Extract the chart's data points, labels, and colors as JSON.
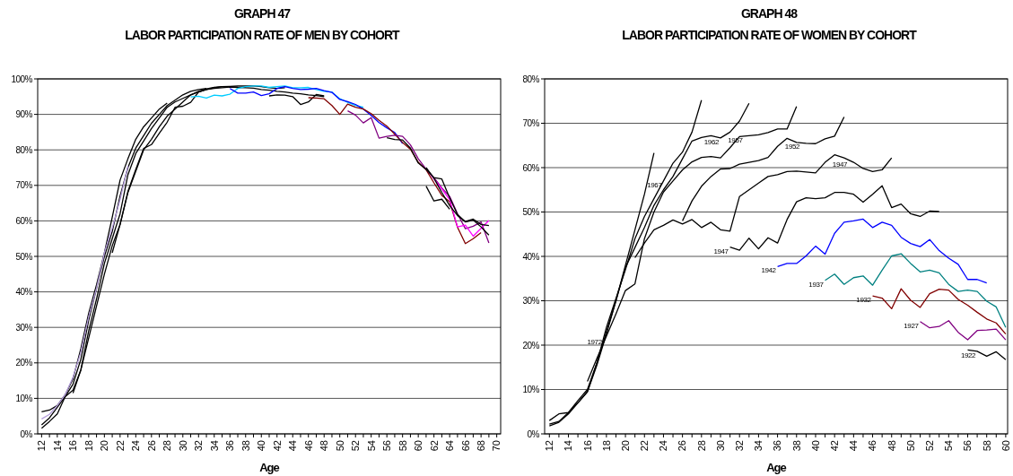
{
  "chart_data": [
    {
      "type": "line",
      "title": "GRAPH 47",
      "subtitle": "LABOR PARTICIPATION RATE OF MEN BY COHORT",
      "xlabel": "Age",
      "xlim": [
        11.5,
        70.5
      ],
      "ylim": [
        0,
        100
      ],
      "grid": "y",
      "xticks": [
        12,
        {
          "value": 13,
          "label": null
        },
        14,
        {
          "value": 15,
          "label": null
        },
        16,
        {
          "value": 17,
          "label": null
        },
        18,
        {
          "value": 19,
          "label": null
        },
        20,
        {
          "value": 21,
          "label": null
        },
        22,
        {
          "value": 23,
          "label": null
        },
        24,
        {
          "value": 25,
          "label": null
        },
        26,
        {
          "value": 27,
          "label": null
        },
        28,
        {
          "value": 29,
          "label": null
        },
        30,
        {
          "value": 31,
          "label": null
        },
        32,
        {
          "value": 33,
          "label": null
        },
        34,
        {
          "value": 35,
          "label": null
        },
        36,
        {
          "value": 37,
          "label": null
        },
        38,
        {
          "value": 39,
          "label": null
        },
        40,
        {
          "value": 41,
          "label": null
        },
        42,
        {
          "value": 43,
          "label": null
        },
        44,
        {
          "value": 45,
          "label": null
        },
        46,
        {
          "value": 47,
          "label": null
        },
        48,
        {
          "value": 49,
          "label": null
        },
        50,
        {
          "value": 51,
          "label": null
        },
        52,
        {
          "value": 53,
          "label": null
        },
        54,
        {
          "value": 55,
          "label": null
        },
        56,
        {
          "value": 57,
          "label": null
        },
        58,
        {
          "value": 59,
          "label": null
        },
        60,
        {
          "value": 61,
          "label": null
        },
        62,
        {
          "value": 63,
          "label": null
        },
        64,
        {
          "value": 65,
          "label": null
        },
        66,
        {
          "value": 67,
          "label": null
        },
        68,
        {
          "value": 69,
          "label": null
        },
        70
      ],
      "yticks": [
        {
          "value": 0,
          "label": "0%"
        },
        {
          "value": 10,
          "label": "10%"
        },
        {
          "value": 20,
          "label": "20%"
        },
        {
          "value": 30,
          "label": "30%"
        },
        {
          "value": 40,
          "label": "40%"
        },
        {
          "value": 50,
          "label": "50%"
        },
        {
          "value": 60,
          "label": "60%"
        },
        {
          "value": 70,
          "label": "70%"
        },
        {
          "value": 80,
          "label": "80%"
        },
        {
          "value": 90,
          "label": "90%"
        },
        {
          "value": 100,
          "label": "100%"
        }
      ],
      "series": [
        {
          "color": "#000000",
          "x": [
            12,
            13,
            14,
            15,
            16,
            17,
            18,
            19,
            20,
            21,
            22,
            23,
            24,
            25,
            26,
            27,
            28
          ],
          "values": [
            6.2,
            6.7,
            8,
            11,
            15.5,
            24,
            34,
            42,
            51,
            61,
            71.5,
            77.5,
            83,
            86.5,
            89,
            91.5,
            93.2
          ]
        },
        {
          "color": "#000000",
          "x": [
            12,
            13,
            14,
            15,
            16,
            17,
            18,
            19,
            20,
            21,
            22,
            23,
            24,
            25,
            26,
            27,
            28,
            29,
            30,
            31,
            32,
            33
          ],
          "values": [
            2.5,
            4.5,
            7.5,
            10.5,
            14,
            21,
            32,
            41,
            50,
            57,
            67,
            75,
            80.5,
            84,
            87.5,
            90,
            92.5,
            94,
            95.5,
            96.5,
            97,
            97.3
          ]
        },
        {
          "color": "#000000",
          "x": [
            12,
            13,
            14,
            15,
            16,
            17,
            18,
            19,
            20,
            21,
            22,
            23,
            24,
            25,
            26,
            27,
            28,
            29,
            30,
            31,
            32,
            33,
            34,
            35,
            36,
            37,
            38
          ],
          "values": [
            1.6,
            3.5,
            5.6,
            10.5,
            12.3,
            18,
            29,
            38,
            48,
            55,
            62,
            73,
            79,
            82.5,
            86,
            89,
            92,
            93.5,
            94.5,
            95.5,
            96.3,
            97,
            97.3,
            97.5,
            97.7,
            97.6,
            97.7
          ]
        },
        {
          "color": "#b39ddb",
          "x": [
            12,
            13,
            14,
            15,
            16,
            17,
            18,
            19,
            20,
            21,
            22,
            23
          ],
          "values": [
            4.2,
            5.5,
            8,
            11,
            16,
            23,
            33,
            41,
            51,
            58,
            66,
            75.5
          ]
        },
        {
          "color": "#000000",
          "x": [
            16,
            17,
            18,
            19,
            20,
            21,
            22,
            23,
            24,
            25,
            26,
            27,
            28,
            29,
            30,
            31,
            32,
            33,
            34,
            35,
            36,
            37,
            38,
            39,
            40,
            41,
            42,
            43
          ],
          "values": [
            11.5,
            18,
            27,
            36,
            45,
            53,
            59,
            68,
            74,
            80,
            83,
            86.5,
            89.5,
            91.5,
            93.5,
            95.5,
            96.5,
            97.2,
            97.6,
            97.8,
            97.9,
            98,
            98,
            98,
            97.8,
            97.5,
            97.3,
            97.5
          ]
        },
        {
          "color": "#000000",
          "x": [
            21,
            22,
            23,
            24,
            25,
            26,
            27,
            28,
            29,
            30,
            31,
            32,
            33,
            34,
            35,
            36,
            37,
            38,
            39,
            40,
            41,
            42,
            43,
            44,
            45,
            46,
            47,
            48
          ],
          "values": [
            51,
            59,
            68.3,
            74.5,
            80.4,
            81.5,
            84.7,
            87.8,
            92,
            92.3,
            93.4,
            96.3,
            97,
            97.5,
            97.8,
            97.8,
            97.6,
            97.5,
            97.4,
            97,
            96.8,
            96.5,
            96.3,
            96,
            95.8,
            95.5,
            95.3,
            95
          ]
        },
        {
          "color": "#00ccff",
          "x": [
            31,
            32,
            33,
            34,
            35,
            36,
            37,
            38,
            39,
            40,
            41,
            42,
            43,
            44,
            45,
            46,
            47,
            48,
            49,
            50,
            51,
            52,
            53
          ],
          "values": [
            94.9,
            95.1,
            94.6,
            95.4,
            95.2,
            95.7,
            97.3,
            97.8,
            98,
            98,
            97.6,
            97.8,
            98,
            97.5,
            97.5,
            97.6,
            97,
            96.5,
            96.3,
            94.4,
            93.4,
            92.5,
            92
          ]
        },
        {
          "color": "#0000ff",
          "x": [
            36,
            37,
            38,
            39,
            40,
            41,
            42,
            43,
            44,
            45,
            46,
            47,
            48,
            49,
            50,
            51,
            52,
            53,
            54,
            55,
            56,
            57,
            58
          ],
          "values": [
            97.3,
            96,
            96,
            96.3,
            95.3,
            95.8,
            97.3,
            97.8,
            97.3,
            97,
            97.1,
            97.3,
            96.7,
            96.2,
            94.2,
            93.6,
            92.8,
            91.5,
            89.7,
            87.7,
            86.2,
            84.9,
            81.8
          ]
        },
        {
          "color": "#000000",
          "x": [
            41,
            42,
            43,
            44,
            45,
            46,
            47,
            48
          ],
          "values": [
            95.2,
            95.5,
            95.4,
            95,
            92.8,
            93.5,
            95.6,
            95.2
          ]
        },
        {
          "color": "#800000",
          "x": [
            46,
            47,
            48,
            49,
            50,
            51,
            52,
            53,
            54,
            55,
            56,
            57,
            58,
            59,
            60,
            61,
            62,
            63,
            64,
            65,
            66,
            67,
            68
          ],
          "values": [
            94.7,
            94.6,
            94.4,
            92.5,
            90,
            92.9,
            92,
            91.5,
            90.2,
            88.3,
            86.7,
            84.4,
            82.1,
            80.2,
            76.5,
            74.4,
            70.7,
            67.2,
            65.4,
            58.2,
            53.6,
            55,
            56.7
          ]
        },
        {
          "color": "#800080",
          "x": [
            51,
            52,
            53,
            54,
            55,
            56,
            57,
            58,
            59,
            60,
            61,
            62,
            63,
            64,
            65,
            66,
            67,
            68,
            69
          ],
          "values": [
            91,
            89.8,
            87.6,
            89.1,
            83.3,
            83.8,
            84.1,
            83.8,
            81.4,
            77.5,
            74.6,
            72.2,
            69.3,
            66.9,
            62,
            57.8,
            58.5,
            59.7,
            53.8
          ]
        },
        {
          "color": "#ff00ff",
          "x": [
            61,
            62,
            63,
            64,
            65,
            66,
            67,
            68,
            69
          ],
          "values": [
            74.8,
            71.8,
            69,
            66,
            58.3,
            58.8,
            55.7,
            57.9,
            60.1
          ]
        },
        {
          "color": "#000000",
          "x": [
            61,
            62,
            63,
            64
          ],
          "values": [
            69.8,
            65.6,
            66.1,
            63.3
          ]
        },
        {
          "color": "#000000",
          "x": [
            56,
            57,
            58,
            59,
            60,
            61,
            62,
            63,
            64,
            65,
            66,
            67,
            68,
            69
          ],
          "values": [
            83.4,
            82.9,
            82.8,
            80.5,
            76.3,
            74.5,
            72.2,
            71.8,
            66.5,
            61.8,
            59.7,
            60.2,
            58.3,
            56
          ]
        },
        {
          "color": "#000000",
          "x": [
            61,
            62,
            63,
            64,
            65,
            66,
            67,
            68,
            69
          ],
          "values": [
            75,
            72,
            68,
            64.3,
            61.5,
            59.8,
            60.5,
            59,
            58.7
          ]
        }
      ]
    },
    {
      "type": "line",
      "title": "GRAPH 48",
      "subtitle": "LABOR PARTICIPATION RATE OF WOMEN BY COHORT",
      "xlabel": "Age",
      "xlim": [
        11.5,
        60.2
      ],
      "ylim": [
        0,
        80
      ],
      "grid": "y",
      "xticks": [
        12,
        {
          "value": 13,
          "label": null
        },
        14,
        {
          "value": 15,
          "label": null
        },
        16,
        {
          "value": 17,
          "label": null
        },
        18,
        {
          "value": 19,
          "label": null
        },
        20,
        {
          "value": 21,
          "label": null
        },
        22,
        {
          "value": 23,
          "label": null
        },
        24,
        {
          "value": 25,
          "label": null
        },
        26,
        {
          "value": 27,
          "label": null
        },
        28,
        {
          "value": 29,
          "label": null
        },
        30,
        {
          "value": 31,
          "label": null
        },
        32,
        {
          "value": 33,
          "label": null
        },
        34,
        {
          "value": 35,
          "label": null
        },
        36,
        {
          "value": 37,
          "label": null
        },
        38,
        {
          "value": 39,
          "label": null
        },
        40,
        {
          "value": 41,
          "label": null
        },
        42,
        {
          "value": 43,
          "label": null
        },
        44,
        {
          "value": 45,
          "label": null
        },
        46,
        {
          "value": 47,
          "label": null
        },
        48,
        {
          "value": 49,
          "label": null
        },
        50,
        {
          "value": 51,
          "label": null
        },
        52,
        {
          "value": 53,
          "label": null
        },
        54,
        {
          "value": 55,
          "label": null
        },
        56,
        {
          "value": 57,
          "label": null
        },
        58,
        {
          "value": 59,
          "label": null
        },
        60
      ],
      "yticks": [
        {
          "value": 0,
          "label": "0%"
        },
        {
          "value": 10,
          "label": "10%"
        },
        {
          "value": 20,
          "label": "20%"
        },
        {
          "value": 30,
          "label": "30%"
        },
        {
          "value": 40,
          "label": "40%"
        },
        {
          "value": 50,
          "label": "50%"
        },
        {
          "value": 60,
          "label": "60%"
        },
        {
          "value": 70,
          "label": "70%"
        },
        {
          "value": 80,
          "label": "80%"
        }
      ],
      "series": [
        {
          "color": "#000000",
          "x": [
            12,
            13,
            14,
            15,
            16,
            17,
            18,
            19,
            20,
            21,
            22,
            23
          ],
          "values": [
            3,
            4.5,
            4.8,
            7.5,
            10,
            16,
            23,
            30,
            38,
            46,
            54,
            63.3
          ]
        },
        {
          "color": "#000000",
          "x": [
            12,
            13,
            14,
            15,
            16,
            17,
            18,
            19,
            20,
            21,
            22,
            23,
            24,
            25,
            26,
            27,
            28
          ],
          "values": [
            2.2,
            2.8,
            4.8,
            7,
            9.5,
            16,
            24,
            30.5,
            37,
            44,
            49,
            53,
            57,
            61,
            63.5,
            68,
            75.2
          ]
        },
        {
          "color": "#000000",
          "x": [
            12,
            13,
            14,
            15,
            16,
            17,
            18,
            19,
            20,
            21,
            22,
            23,
            24,
            25,
            26,
            27,
            28,
            29,
            30,
            31,
            32,
            33
          ],
          "values": [
            1.8,
            2.6,
            4.5,
            7,
            9.5,
            15.5,
            22.5,
            30,
            37.5,
            42,
            46.5,
            51.5,
            55,
            58,
            62,
            66,
            66.8,
            67.2,
            66.7,
            68,
            70.5,
            74.5
          ]
        },
        {
          "color": "#000000",
          "x": [
            16,
            17,
            18,
            19,
            20,
            21,
            22,
            23,
            24,
            25,
            26,
            27,
            28,
            29,
            30,
            31,
            32,
            33,
            34,
            35,
            36,
            37,
            38
          ],
          "values": [
            11.8,
            17,
            22,
            27,
            32.3,
            33.8,
            44,
            50,
            54.5,
            57,
            59.5,
            61.3,
            62.3,
            62.5,
            62.2,
            64.5,
            67,
            67.2,
            67.4,
            67.9,
            68.7,
            68.7,
            73.8
          ]
        },
        {
          "color": "#000000",
          "x": [
            21,
            22,
            23,
            24,
            25,
            26,
            27,
            28,
            29,
            30,
            31,
            32,
            33,
            34,
            35,
            36,
            37,
            38,
            39,
            40,
            41,
            42,
            43,
            44,
            45,
            46,
            47,
            48
          ],
          "values": [
            39.7,
            43,
            46,
            47,
            48.2,
            47.3,
            48.3,
            46.5,
            47.7,
            46,
            45.7,
            53.5,
            55,
            56.5,
            58,
            58.4,
            59.1,
            59.2,
            59,
            58.8,
            61.2,
            62.9,
            62.2,
            61.2,
            59.8,
            59.1,
            59.5,
            62.2
          ]
        },
        {
          "color": "#000000",
          "x": [
            26,
            27,
            28,
            29,
            30,
            31,
            32,
            33,
            34,
            35,
            36,
            37,
            38,
            39,
            40,
            41,
            42,
            43
          ],
          "values": [
            48,
            52.5,
            55.8,
            58,
            59.7,
            59.8,
            60.8,
            61.2,
            61.6,
            62.3,
            64.8,
            66.6,
            65.7,
            65.5,
            65.4,
            66.5,
            67.1,
            71.4
          ]
        },
        {
          "color": "#000000",
          "x": [
            31,
            32,
            33,
            34,
            35,
            36,
            37,
            38,
            39,
            40,
            41,
            42,
            43,
            44,
            45,
            46,
            47,
            48,
            49,
            50,
            51,
            52,
            53
          ],
          "values": [
            42.1,
            41.4,
            44.1,
            41.7,
            44.2,
            43,
            48.3,
            52.3,
            53.2,
            53,
            53.2,
            54.4,
            54.4,
            54,
            52.2,
            54,
            55.9,
            51,
            51.8,
            49.6,
            49,
            50.2,
            50.1
          ]
        },
        {
          "color": "#0000ff",
          "x": [
            36,
            37,
            38,
            39,
            40,
            41,
            42,
            43,
            44,
            45,
            46,
            47,
            48,
            49,
            50,
            51,
            52,
            53,
            54,
            55,
            56,
            57,
            58
          ],
          "values": [
            37.7,
            38.4,
            38.4,
            40.1,
            42.3,
            40.5,
            45.2,
            47.7,
            48,
            48.4,
            46.5,
            47.7,
            47,
            44.3,
            42.9,
            42.2,
            43.8,
            41.3,
            39.6,
            38.2,
            34.8,
            34.8,
            34
          ]
        },
        {
          "color": "#008080",
          "x": [
            41,
            42,
            43,
            44,
            45,
            46,
            47,
            48,
            49,
            50,
            51,
            52,
            53,
            54,
            55,
            56,
            57,
            58,
            59,
            60
          ],
          "values": [
            34.6,
            36,
            33.7,
            35.2,
            35.6,
            33.5,
            36.9,
            40.1,
            40.6,
            38.4,
            36.5,
            36.9,
            36.3,
            33.7,
            32.1,
            32.4,
            32.1,
            29.9,
            28.6,
            24
          ]
        },
        {
          "color": "#800000",
          "x": [
            46,
            47,
            48,
            49,
            50,
            51,
            52,
            53,
            54,
            55,
            56,
            57,
            58,
            59,
            60
          ],
          "values": [
            31.1,
            30.6,
            28.2,
            32.7,
            30.1,
            28.5,
            31.6,
            32.6,
            32.4,
            30.3,
            29,
            27.4,
            25.9,
            25,
            22.5
          ]
        },
        {
          "color": "#800080",
          "x": [
            51,
            52,
            53,
            54,
            55,
            56,
            57,
            58,
            59,
            60
          ],
          "values": [
            25.3,
            23.9,
            24.2,
            25.5,
            22.9,
            21.2,
            23.3,
            23.4,
            23.6,
            21.2
          ]
        },
        {
          "color": "#000000",
          "x": [
            56,
            57,
            58,
            59,
            60
          ],
          "values": [
            18.9,
            18.6,
            17.5,
            18.5,
            16.7
          ]
        }
      ],
      "annotations": [
        {
          "text": "1972",
          "x": 17.7,
          "y": 21.6
        },
        {
          "text": "1967",
          "x": 24,
          "y": 57
        },
        {
          "text": "1962",
          "x": 30,
          "y": 66.7
        },
        {
          "text": "1957",
          "x": 32.5,
          "y": 67.1
        },
        {
          "text": "1952",
          "x": 38.5,
          "y": 65.6
        },
        {
          "text": "1947",
          "x": 43.5,
          "y": 61.7
        },
        {
          "text": "1947",
          "x": 31,
          "y": 42.1
        },
        {
          "text": "1942",
          "x": 36,
          "y": 37.7
        },
        {
          "text": "1937",
          "x": 41,
          "y": 34.6
        },
        {
          "text": "1932",
          "x": 46,
          "y": 31.1
        },
        {
          "text": "1927",
          "x": 51,
          "y": 25.3
        },
        {
          "text": "1922",
          "x": 57,
          "y": 18.6
        }
      ]
    }
  ]
}
